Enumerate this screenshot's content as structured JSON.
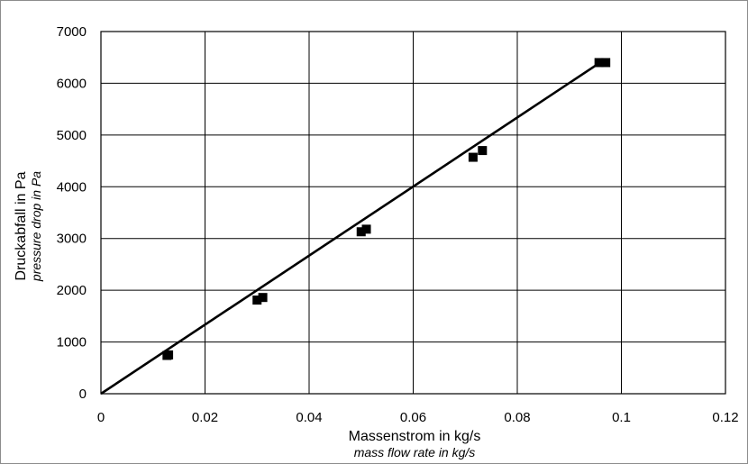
{
  "chart_data": {
    "type": "scatter",
    "xlabel": "Massenstrom in kg/s",
    "xlabel_sub": "mass flow rate in kg/s",
    "ylabel": "Druckabfall in Pa",
    "ylabel_sub": "pressure drop in Pa",
    "xlim": [
      0,
      0.12
    ],
    "ylim": [
      0,
      7000
    ],
    "x_ticks": [
      0,
      0.02,
      0.04,
      0.06,
      0.08,
      0.1,
      0.12
    ],
    "x_tick_labels": [
      "0",
      "0.02",
      "0.04",
      "0.06",
      "0.08",
      "0.1",
      "0.12"
    ],
    "y_ticks": [
      0,
      1000,
      2000,
      3000,
      4000,
      5000,
      6000,
      7000
    ],
    "y_tick_labels": [
      "0",
      "1000",
      "2000",
      "3000",
      "4000",
      "5000",
      "6000",
      "7000"
    ],
    "grid": true,
    "series": [
      {
        "marker": "square",
        "color": "#000000",
        "points": [
          {
            "x": 0.0127,
            "y": 740
          },
          {
            "x": 0.013,
            "y": 750
          },
          {
            "x": 0.03,
            "y": 1810
          },
          {
            "x": 0.0311,
            "y": 1860
          },
          {
            "x": 0.05,
            "y": 3130
          },
          {
            "x": 0.051,
            "y": 3180
          },
          {
            "x": 0.0715,
            "y": 4570
          },
          {
            "x": 0.0733,
            "y": 4700
          },
          {
            "x": 0.0957,
            "y": 6400
          },
          {
            "x": 0.097,
            "y": 6400
          }
        ]
      },
      {
        "type": "line",
        "color": "#000000",
        "points": [
          {
            "x": 0,
            "y": 0
          },
          {
            "x": 0.0965,
            "y": 6440
          }
        ]
      }
    ]
  }
}
